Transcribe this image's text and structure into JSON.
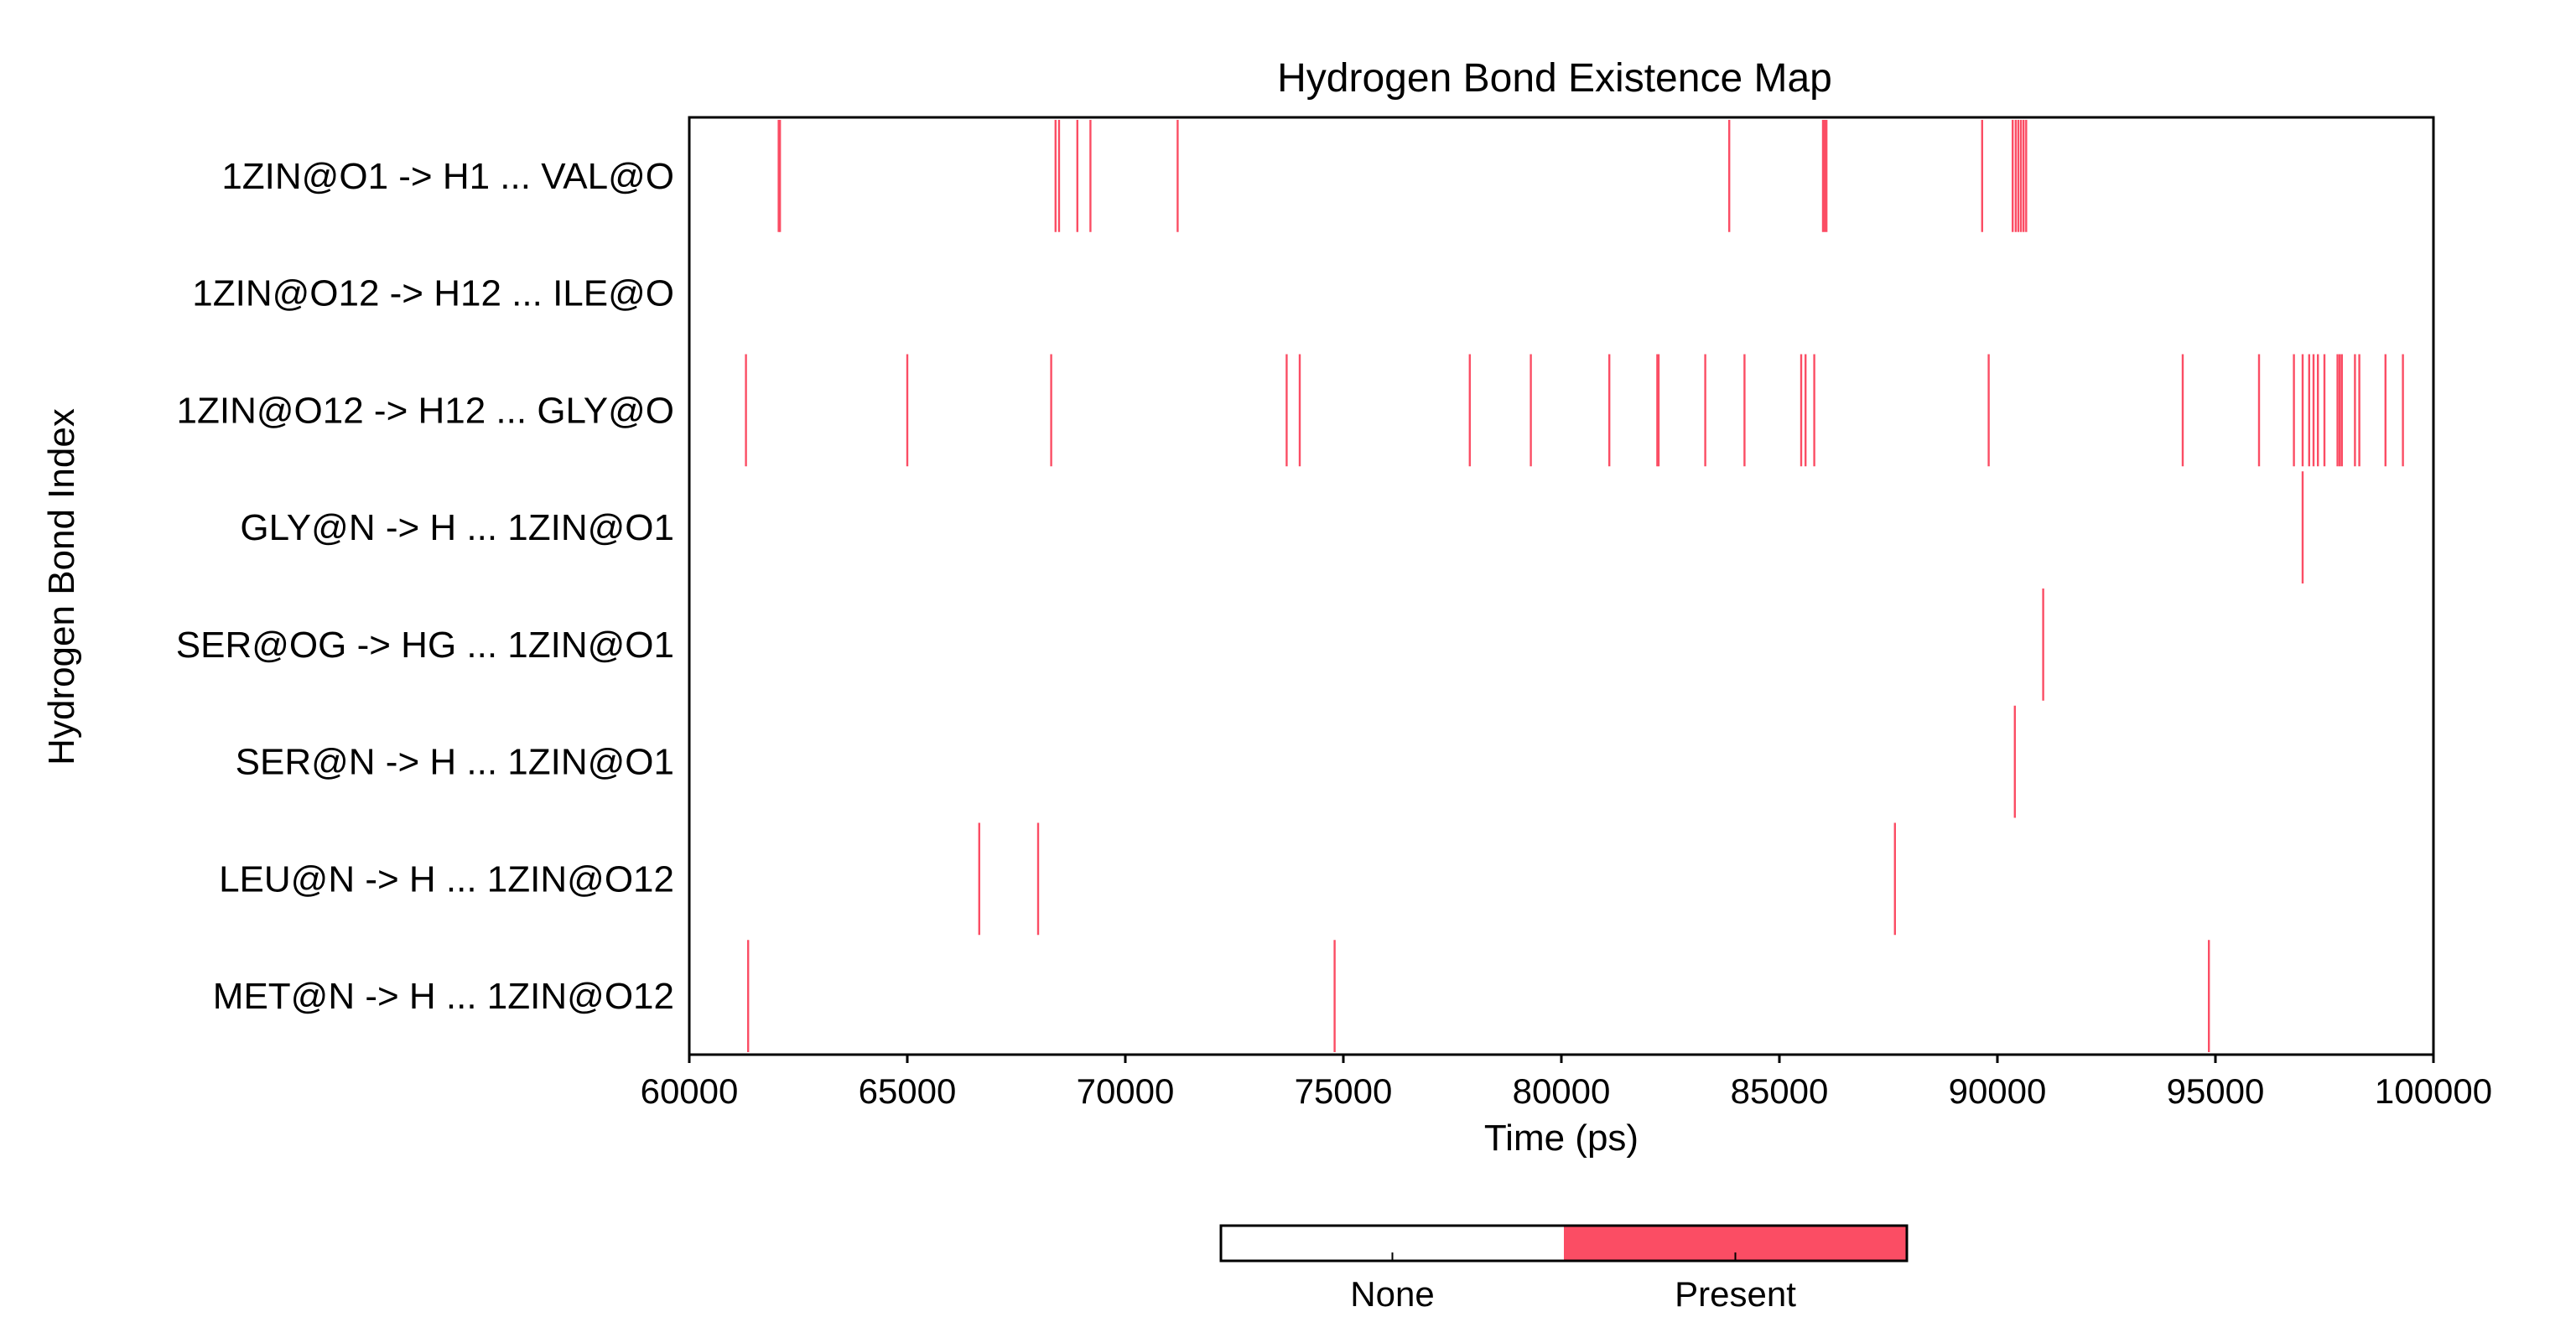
{
  "chart_data": {
    "type": "heatmap",
    "title": "Hydrogen Bond Existence Map",
    "xlabel": "Time (ps)",
    "ylabel": "Hydrogen Bond Index",
    "xlim": [
      60000,
      100000
    ],
    "x_ticks": [
      60000,
      65000,
      70000,
      75000,
      80000,
      85000,
      90000,
      95000,
      100000
    ],
    "x_tick_labels": [
      "60000",
      "65000",
      "70000",
      "75000",
      "80000",
      "85000",
      "90000",
      "95000",
      "100000"
    ],
    "grid": false,
    "legend": {
      "placement": "bottom-center",
      "entries": [
        {
          "label": "None",
          "color": "#ffffff"
        },
        {
          "label": "Present",
          "color": "#fb4d64"
        }
      ]
    },
    "present_color": "#fb4d64",
    "rows": [
      {
        "label": "1ZIN@O1 -> H1 ... VAL@O",
        "events": [
          62050,
          62080,
          68400,
          68480,
          68900,
          69200,
          71200,
          83850,
          86000,
          86040,
          86080,
          89650,
          90350,
          90420,
          90480,
          90540,
          90600,
          90660
        ]
      },
      {
        "label": "1ZIN@O12 -> H12 ... ILE@O",
        "events": []
      },
      {
        "label": "1ZIN@O12 -> H12 ... GLY@O",
        "events": [
          61300,
          65000,
          68300,
          73700,
          74000,
          77900,
          79300,
          81100,
          82200,
          82230,
          83300,
          84200,
          85500,
          85600,
          85800,
          89800,
          94250,
          96000,
          96800,
          97000,
          97150,
          97250,
          97350,
          97500,
          97800,
          97850,
          97900,
          98200,
          98300,
          98900,
          99300
        ]
      },
      {
        "label": "GLY@N -> H ... 1ZIN@O1",
        "events": [
          97000
        ]
      },
      {
        "label": "SER@OG -> HG ... 1ZIN@O1",
        "events": [
          91050
        ]
      },
      {
        "label": "SER@N -> H ... 1ZIN@O1",
        "events": [
          90400
        ]
      },
      {
        "label": "LEU@N -> H ... 1ZIN@O12",
        "events": [
          66650,
          68000,
          87650
        ]
      },
      {
        "label": "MET@N -> H ... 1ZIN@O12",
        "events": [
          61350,
          74800,
          94850
        ]
      }
    ]
  }
}
